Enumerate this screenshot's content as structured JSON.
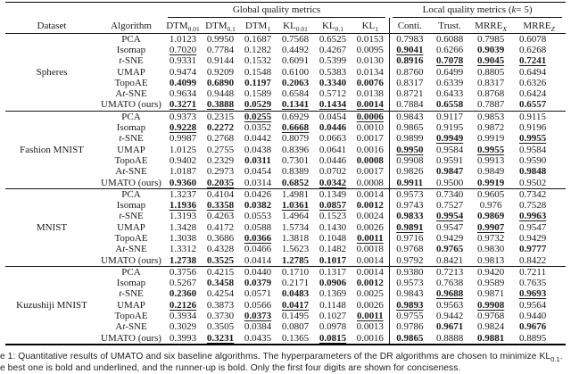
{
  "page": {
    "background": "#ffffff",
    "text_color": "#1b1b1b",
    "rule_color": "#000000"
  },
  "table": {
    "group_headers": [
      {
        "name": "global",
        "colspan": 6,
        "segments": [
          {
            "t": "Global quality metrics"
          }
        ]
      },
      {
        "name": "local",
        "colspan": 4,
        "segments": [
          {
            "t": "Local quality metrics ("
          },
          {
            "t": "k",
            "i": true
          },
          {
            "t": " = 5)"
          }
        ]
      }
    ],
    "columns": [
      {
        "name": "dataset",
        "segments": [
          {
            "t": "Dataset"
          }
        ]
      },
      {
        "name": "algorithm",
        "segments": [
          {
            "t": "Algorithm"
          }
        ]
      },
      {
        "name": "dtm-0-01",
        "segments": [
          {
            "t": "DTM"
          },
          {
            "t": "0.01",
            "sub": true
          }
        ]
      },
      {
        "name": "dtm-0-1",
        "segments": [
          {
            "t": "DTM"
          },
          {
            "t": "0.1",
            "sub": true
          }
        ]
      },
      {
        "name": "dtm-1",
        "segments": [
          {
            "t": "DTM"
          },
          {
            "t": "1",
            "sub": true
          }
        ]
      },
      {
        "name": "kl-0-01",
        "segments": [
          {
            "t": "KL"
          },
          {
            "t": "0.01",
            "sub": true
          }
        ]
      },
      {
        "name": "kl-0-1",
        "segments": [
          {
            "t": "KL"
          },
          {
            "t": "0.1",
            "sub": true
          }
        ]
      },
      {
        "name": "kl-1",
        "segments": [
          {
            "t": "KL"
          },
          {
            "t": "1",
            "sub": true
          }
        ]
      },
      {
        "name": "conti",
        "segments": [
          {
            "t": "Conti."
          }
        ]
      },
      {
        "name": "trust",
        "segments": [
          {
            "t": "Trust."
          }
        ]
      },
      {
        "name": "mrre-x",
        "segments": [
          {
            "t": "MRRE"
          },
          {
            "t": "X",
            "sub": true,
            "i": true
          }
        ]
      },
      {
        "name": "mrre-z",
        "segments": [
          {
            "t": "MRRE"
          },
          {
            "t": "Z",
            "sub": true,
            "i": true
          }
        ]
      }
    ],
    "groups": [
      {
        "dataset": "Spheres",
        "rows": [
          {
            "algorithm": [
              {
                "t": "PCA"
              }
            ],
            "cells": [
              "1.0123",
              "0.9950",
              "0.1687",
              "0.7568",
              "0.6525",
              "0.0153",
              "0.7983",
              "0.6088",
              "0.7985",
              "0.6078"
            ]
          },
          {
            "algorithm": [
              {
                "t": "Isomap"
              }
            ],
            "cells": [
              "0.7020|u",
              "0.7784",
              "0.1282",
              "0.4492",
              "0.4267",
              "0.0095",
              "0.9041|bu",
              "0.6266",
              "0.9039|b",
              "0.6268"
            ]
          },
          {
            "algorithm": [
              {
                "t": "t",
                "i": true
              },
              {
                "t": "-SNE"
              }
            ],
            "cells": [
              "0.9331",
              "0.9144",
              "0.1532",
              "0.6091",
              "0.5399",
              "0.0130",
              "0.8916|b",
              "0.7078|bu",
              "0.9045|bu",
              "0.7241|bu"
            ]
          },
          {
            "algorithm": [
              {
                "t": "UMAP"
              }
            ],
            "cells": [
              "0.9474",
              "0.9209",
              "0.1548",
              "0.6100",
              "0.5383",
              "0.0134",
              "0.8760",
              "0.6499",
              "0.8805",
              "0.6494"
            ]
          },
          {
            "algorithm": [
              {
                "t": "TopoAE"
              }
            ],
            "cells": [
              "0.4099|b",
              "0.6890|b",
              "0.1197|b",
              "0.2063|b",
              "0.3340|b",
              "0.0076|b",
              "0.8317",
              "0.6339",
              "0.8317",
              "0.6326"
            ]
          },
          {
            "algorithm": [
              {
                "t": "A"
              },
              {
                "t": "t",
                "i": true
              },
              {
                "t": "-SNE"
              }
            ],
            "cells": [
              "0.9634",
              "0.9448",
              "0.1589",
              "0.6584",
              "0.5712",
              "0.0138",
              "0.8721",
              "0.6433",
              "0.8768",
              "0.6424"
            ]
          },
          {
            "algorithm": [
              {
                "t": "UMATO (ours)"
              }
            ],
            "cells": [
              "0.3271|bu",
              "0.3888|bu",
              "0.0529|bu",
              "0.1341|bu",
              "0.1434|bu",
              "0.0014|bu",
              "0.7884",
              "0.6558|b",
              "0.7887",
              "0.6557|b"
            ]
          }
        ]
      },
      {
        "dataset": "Fashion MNIST",
        "rows": [
          {
            "algorithm": [
              {
                "t": "PCA"
              }
            ],
            "cells": [
              "0.9373",
              "0.2315",
              "0.0255|bu",
              "0.6929",
              "0.0454",
              "0.0006|bu",
              "0.9843",
              "0.9117",
              "0.9853",
              "0.9115"
            ]
          },
          {
            "algorithm": [
              {
                "t": "Isomap"
              }
            ],
            "cells": [
              "0.9228|bu",
              "0.2272|b",
              "0.0352",
              "0.6668|bu",
              "0.0446|b",
              "0.0010",
              "0.9865",
              "0.9195",
              "0.9872",
              "0.9196"
            ]
          },
          {
            "algorithm": [
              {
                "t": "t",
                "i": true
              },
              {
                "t": "-SNE"
              }
            ],
            "cells": [
              "0.9987",
              "0.2768",
              "0.0442",
              "0.8079",
              "0.0663",
              "0.0017",
              "0.9899",
              "0.9949|bu",
              "0.9919",
              "0.9955|bu"
            ]
          },
          {
            "algorithm": [
              {
                "t": "UMAP"
              }
            ],
            "cells": [
              "1.0125",
              "0.2755",
              "0.0438",
              "0.8396",
              "0.0641",
              "0.0016",
              "0.9950|bu",
              "0.9584",
              "0.9955|bu",
              "0.9584"
            ]
          },
          {
            "algorithm": [
              {
                "t": "TopoAE"
              }
            ],
            "cells": [
              "0.9402",
              "0.2329",
              "0.0311|b",
              "0.7301",
              "0.0446",
              "0.0008|b",
              "0.9908",
              "0.9591",
              "0.9913",
              "0.9590"
            ]
          },
          {
            "algorithm": [
              {
                "t": "A"
              },
              {
                "t": "t",
                "i": true
              },
              {
                "t": "-SNE"
              }
            ],
            "cells": [
              "1.0187",
              "0.2973",
              "0.0454",
              "0.8389",
              "0.0702",
              "0.0017",
              "0.9826",
              "0.9847|b",
              "0.9849",
              "0.9848|b"
            ]
          },
          {
            "algorithm": [
              {
                "t": "UMATO (ours)"
              }
            ],
            "cells": [
              "0.9360|b",
              "0.2035|bu",
              "0.0314",
              "0.6852|b",
              "0.0342|bu",
              "0.0008",
              "0.9911|b",
              "0.9500",
              "0.9919|b",
              "0.9502"
            ]
          }
        ]
      },
      {
        "dataset": "MNIST",
        "rows": [
          {
            "algorithm": [
              {
                "t": "PCA"
              }
            ],
            "cells": [
              "1.3237",
              "0.4104",
              "0.0426",
              "1.4981",
              "0.1349",
              "0.0014",
              "0.9573",
              "0.7340",
              "0.9605",
              "0.7342"
            ]
          },
          {
            "algorithm": [
              {
                "t": "Isomap"
              }
            ],
            "cells": [
              "1.1936|bu",
              "0.3358|bu",
              "0.0382|b",
              "1.0361|bu",
              "0.0857|bu",
              "0.0012|b",
              "0.9743",
              "0.7527",
              "0.976",
              "0.7528"
            ]
          },
          {
            "algorithm": [
              {
                "t": "t",
                "i": true
              },
              {
                "t": "-SNE"
              }
            ],
            "cells": [
              "1.3193",
              "0.4263",
              "0.0553",
              "1.4964",
              "0.1523",
              "0.0024",
              "0.9833|b",
              "0.9954|bu",
              "0.9869|b",
              "0.9963|bu"
            ]
          },
          {
            "algorithm": [
              {
                "t": "UMAP"
              }
            ],
            "cells": [
              "1.3428",
              "0.4172",
              "0.0588",
              "1.5734",
              "0.1430",
              "0.0026",
              "0.9891|bu",
              "0.9547",
              "0.9907|bu",
              "0.9547"
            ]
          },
          {
            "algorithm": [
              {
                "t": "TopoAE"
              }
            ],
            "cells": [
              "1.3038",
              "0.3686",
              "0.0366|bu",
              "1.3818",
              "0.1048",
              "0.0011|bu",
              "0.9716",
              "0.9429",
              "0.9732",
              "0.9429"
            ]
          },
          {
            "algorithm": [
              {
                "t": "A"
              },
              {
                "t": "t",
                "i": true
              },
              {
                "t": "-SNE"
              }
            ],
            "cells": [
              "1.3312",
              "0.4328",
              "0.0466",
              "1.5623",
              "0.1482",
              "0.0018",
              "0.9768",
              "0.9765|b",
              "0.9830",
              "0.9777|b"
            ]
          },
          {
            "algorithm": [
              {
                "t": "UMATO (ours)"
              }
            ],
            "cells": [
              "1.2738|b",
              "0.3525|b",
              "0.0414",
              "1.2785|b",
              "0.1017|b",
              "0.0014",
              "0.9792",
              "0.8421",
              "0.9813",
              "0.8422"
            ]
          }
        ]
      },
      {
        "dataset": "Kuzushiji MNIST",
        "rows": [
          {
            "algorithm": [
              {
                "t": "PCA"
              }
            ],
            "cells": [
              "0.3756",
              "0.4215",
              "0.0440",
              "0.1710",
              "0.1317",
              "0.0014",
              "0.9380",
              "0.7213",
              "0.9420",
              "0.7211"
            ]
          },
          {
            "algorithm": [
              {
                "t": "Isomap"
              }
            ],
            "cells": [
              "0.5267",
              "0.3458|b",
              "0.0379|b",
              "0.2171",
              "0.0906|b",
              "0.0012|b",
              "0.9573",
              "0.7638",
              "0.9589",
              "0.7635"
            ]
          },
          {
            "algorithm": [
              {
                "t": "t",
                "i": true
              },
              {
                "t": "-SNE"
              }
            ],
            "cells": [
              "0.2360|b",
              "0.4254",
              "0.0571",
              "0.0483|b",
              "0.1369",
              "0.0025",
              "0.9843",
              "0.9688|bu",
              "0.9871",
              "0.9693|bu"
            ]
          },
          {
            "algorithm": [
              {
                "t": "UMAP"
              }
            ],
            "cells": [
              "0.2126|bu",
              "0.3873",
              "0.0566",
              "0.0417|bu",
              "0.1148",
              "0.0026",
              "0.9893|bu",
              "0.9563",
              "0.9908|bu",
              "0.9564"
            ]
          },
          {
            "algorithm": [
              {
                "t": "TopoAE"
              }
            ],
            "cells": [
              "0.3934",
              "0.3730",
              "0.0373|bu",
              "0.1495",
              "0.1027",
              "0.0011|bu",
              "0.9755",
              "0.9442",
              "0.9768",
              "0.9440"
            ]
          },
          {
            "algorithm": [
              {
                "t": "A"
              },
              {
                "t": "t",
                "i": true
              },
              {
                "t": "-SNE"
              }
            ],
            "cells": [
              "0.3029",
              "0.3505",
              "0.0384",
              "0.0807",
              "0.0978",
              "0.0013",
              "0.9786",
              "0.9671|b",
              "0.9824",
              "0.9676|b"
            ]
          },
          {
            "algorithm": [
              {
                "t": "UMATO (ours)"
              }
            ],
            "cells": [
              "0.3993",
              "0.3231|bu",
              "0.0435",
              "0.1365",
              "0.0815|bu",
              "0.0016",
              "0.9865|b",
              "0.8888",
              "0.9881|b",
              "0.8895"
            ]
          }
        ]
      }
    ]
  },
  "caption": {
    "line1_segments": [
      {
        "t": "e 1: Quantitative results of UMATO and six baseline algorithms. The hyperparameters of the DR algorithms are chosen to minimize KL"
      },
      {
        "t": "0.1",
        "sub": true
      },
      {
        "t": "."
      }
    ],
    "line2_segments": [
      {
        "t": "e best one is bold and underlined, and the runner-up is bold. Only the first four digits are shown for conciseness."
      }
    ]
  }
}
